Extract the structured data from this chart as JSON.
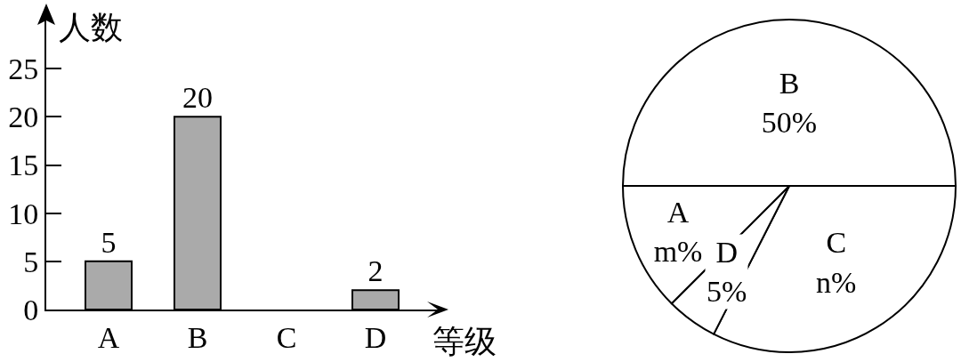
{
  "chart_data": [
    {
      "type": "bar",
      "categories": [
        "A",
        "B",
        "C",
        "D"
      ],
      "values": [
        5,
        20,
        null,
        2
      ],
      "color": "#aaaaaa",
      "ylim": [
        0,
        30
      ],
      "yticks": [
        0,
        5,
        10,
        15,
        20,
        25
      ],
      "xlabel": "等级",
      "ylabel": "人数",
      "data_labels": true
    },
    {
      "type": "pie",
      "categories": [
        "B",
        "C",
        "D",
        "A"
      ],
      "values": [
        50,
        32.5,
        5,
        12.5
      ],
      "value_labels": [
        "50%",
        "n%",
        "5%",
        "m%"
      ],
      "colors": [
        "#ffffff",
        "#ffffff",
        "#ffffff",
        "#ffffff"
      ]
    }
  ]
}
